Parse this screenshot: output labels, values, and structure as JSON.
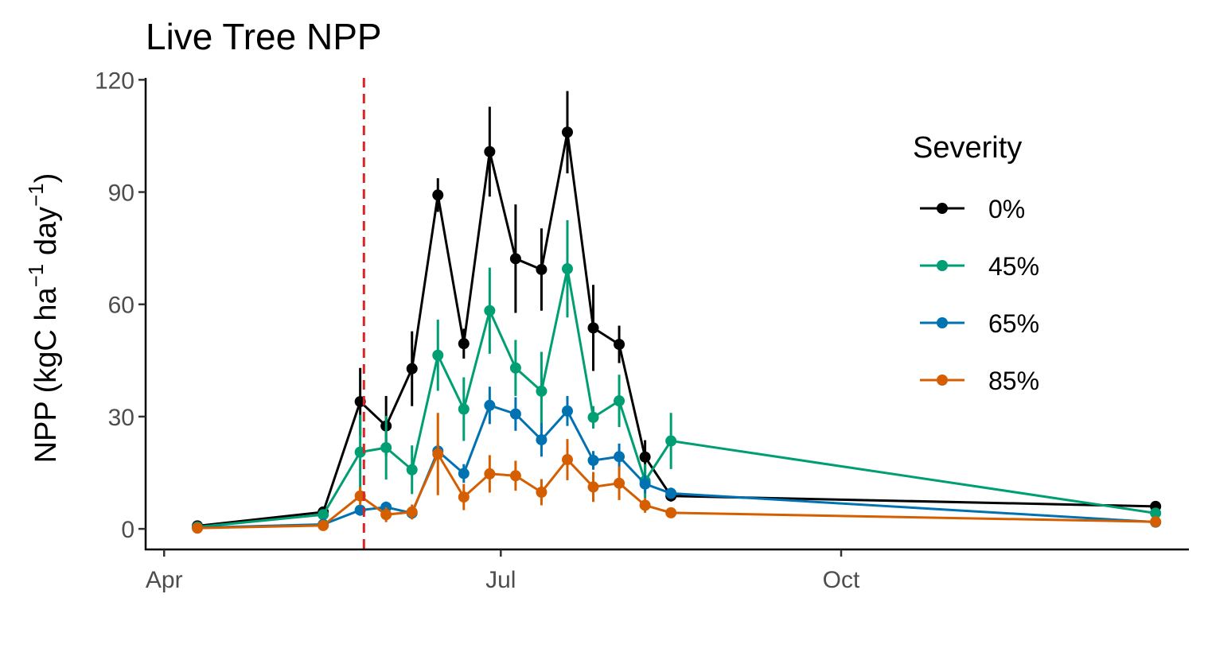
{
  "chart_data": {
    "type": "line",
    "title": "Live Tree NPP",
    "xlabel": "",
    "ylabel": "NPP (kgC ha",
    "ylabel_sup1": "−1",
    "ylabel_mid": " day",
    "ylabel_sup2": "−1",
    "ylabel_end": ")",
    "x_tick_labels": [
      "Apr",
      "Jul",
      "Oct"
    ],
    "x_tick_dates": [
      "2019-04-01",
      "2019-07-01",
      "2019-10-01"
    ],
    "xlim": [
      "2019-03-27",
      "2020-01-03"
    ],
    "y_ticks": [
      0,
      30,
      60,
      90,
      120
    ],
    "y_tick_labels": [
      "0",
      "30",
      "60",
      "90",
      "120"
    ],
    "ylim": [
      -5.5,
      120.5
    ],
    "reference_line": {
      "date": "2019-05-25",
      "color": "#d62728",
      "style": "dashed"
    },
    "grid": false,
    "legend": {
      "title": "Severity",
      "position": "right"
    },
    "series": [
      {
        "name": "0%",
        "color": "#000000",
        "points": [
          {
            "x": "2019-04-10",
            "y": 0.8,
            "err": 0.5
          },
          {
            "x": "2019-05-14",
            "y": 4.5,
            "err": 1.0
          },
          {
            "x": "2019-05-24",
            "y": 34.0,
            "err": 9.0
          },
          {
            "x": "2019-05-31",
            "y": 27.5,
            "err": 8.0
          },
          {
            "x": "2019-06-07",
            "y": 42.8,
            "err": 10.0
          },
          {
            "x": "2019-06-14",
            "y": 89.2,
            "err": 4.5
          },
          {
            "x": "2019-06-21",
            "y": 49.5,
            "err": 4.0
          },
          {
            "x": "2019-06-28",
            "y": 100.8,
            "err": 12.0
          },
          {
            "x": "2019-07-05",
            "y": 72.2,
            "err": 14.5
          },
          {
            "x": "2019-07-12",
            "y": 69.3,
            "err": 11.0
          },
          {
            "x": "2019-07-19",
            "y": 106.0,
            "err": 11.0
          },
          {
            "x": "2019-07-26",
            "y": 53.7,
            "err": 11.5
          },
          {
            "x": "2019-08-02",
            "y": 49.3,
            "err": 5.0
          },
          {
            "x": "2019-08-09",
            "y": 19.2,
            "err": 4.5
          },
          {
            "x": "2019-08-16",
            "y": 8.8,
            "err": 1.5
          },
          {
            "x": "2019-12-25",
            "y": 6.0,
            "err": 1.0
          }
        ]
      },
      {
        "name": "45%",
        "color": "#009e73",
        "points": [
          {
            "x": "2019-04-10",
            "y": 0.5,
            "err": 0.5
          },
          {
            "x": "2019-05-14",
            "y": 3.8,
            "err": 1.0
          },
          {
            "x": "2019-05-24",
            "y": 20.5,
            "err": 10.0
          },
          {
            "x": "2019-05-31",
            "y": 21.7,
            "err": 8.5
          },
          {
            "x": "2019-06-07",
            "y": 15.8,
            "err": 6.5
          },
          {
            "x": "2019-06-14",
            "y": 46.4,
            "err": 9.5
          },
          {
            "x": "2019-06-21",
            "y": 32.0,
            "err": 8.5
          },
          {
            "x": "2019-06-28",
            "y": 58.3,
            "err": 11.5
          },
          {
            "x": "2019-07-05",
            "y": 43.0,
            "err": 7.5
          },
          {
            "x": "2019-07-12",
            "y": 36.8,
            "err": 10.5
          },
          {
            "x": "2019-07-19",
            "y": 69.5,
            "err": 13.0
          },
          {
            "x": "2019-07-26",
            "y": 29.8,
            "err": 3.0
          },
          {
            "x": "2019-08-02",
            "y": 34.2,
            "err": 7.0
          },
          {
            "x": "2019-08-09",
            "y": 12.8,
            "err": 4.5
          },
          {
            "x": "2019-08-16",
            "y": 23.5,
            "err": 7.5
          },
          {
            "x": "2019-12-25",
            "y": 4.2,
            "err": 1.0
          }
        ]
      },
      {
        "name": "65%",
        "color": "#0072b2",
        "points": [
          {
            "x": "2019-04-10",
            "y": 0.3,
            "err": 0.3
          },
          {
            "x": "2019-05-14",
            "y": 1.2,
            "err": 0.5
          },
          {
            "x": "2019-05-24",
            "y": 5.0,
            "err": 1.5
          },
          {
            "x": "2019-05-31",
            "y": 5.8,
            "err": 1.5
          },
          {
            "x": "2019-06-07",
            "y": 4.2,
            "err": 1.5
          },
          {
            "x": "2019-06-14",
            "y": 20.8,
            "err": 2.0
          },
          {
            "x": "2019-06-21",
            "y": 14.8,
            "err": 2.5
          },
          {
            "x": "2019-06-28",
            "y": 33.0,
            "err": 5.0
          },
          {
            "x": "2019-07-05",
            "y": 30.7,
            "err": 4.5
          },
          {
            "x": "2019-07-12",
            "y": 23.8,
            "err": 4.5
          },
          {
            "x": "2019-07-19",
            "y": 31.5,
            "err": 4.0
          },
          {
            "x": "2019-07-26",
            "y": 18.3,
            "err": 2.5
          },
          {
            "x": "2019-08-02",
            "y": 19.3,
            "err": 3.5
          },
          {
            "x": "2019-08-09",
            "y": 12.0,
            "err": 2.5
          },
          {
            "x": "2019-08-16",
            "y": 9.5,
            "err": 1.5
          },
          {
            "x": "2019-12-25",
            "y": 1.8,
            "err": 0.5
          }
        ]
      },
      {
        "name": "85%",
        "color": "#d55e00",
        "points": [
          {
            "x": "2019-04-10",
            "y": 0.2,
            "err": 0.3
          },
          {
            "x": "2019-05-14",
            "y": 0.9,
            "err": 0.5
          },
          {
            "x": "2019-05-24",
            "y": 8.8,
            "err": 2.5
          },
          {
            "x": "2019-05-31",
            "y": 3.8,
            "err": 2.0
          },
          {
            "x": "2019-06-07",
            "y": 4.5,
            "err": 2.0
          },
          {
            "x": "2019-06-14",
            "y": 20.0,
            "err": 11.0
          },
          {
            "x": "2019-06-21",
            "y": 8.5,
            "err": 3.5
          },
          {
            "x": "2019-06-28",
            "y": 14.7,
            "err": 5.0
          },
          {
            "x": "2019-07-05",
            "y": 14.2,
            "err": 4.0
          },
          {
            "x": "2019-07-12",
            "y": 9.8,
            "err": 3.5
          },
          {
            "x": "2019-07-19",
            "y": 18.5,
            "err": 5.5
          },
          {
            "x": "2019-07-26",
            "y": 11.2,
            "err": 4.0
          },
          {
            "x": "2019-08-02",
            "y": 12.2,
            "err": 4.5
          },
          {
            "x": "2019-08-09",
            "y": 6.3,
            "err": 2.0
          },
          {
            "x": "2019-08-16",
            "y": 4.3,
            "err": 1.0
          },
          {
            "x": "2019-12-25",
            "y": 1.9,
            "err": 0.5
          }
        ]
      }
    ]
  }
}
